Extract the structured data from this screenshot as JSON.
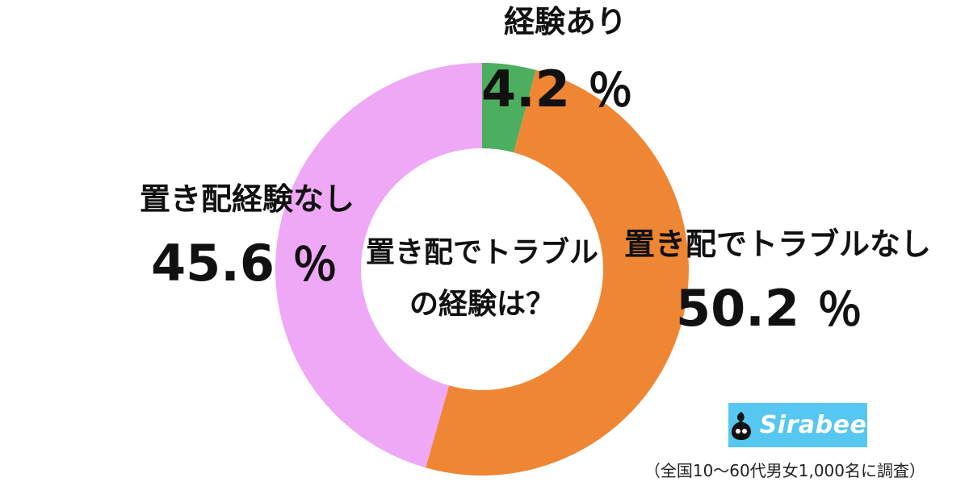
{
  "chart_data": {
    "type": "pie",
    "variant": "donut",
    "center_label": [
      "置き配でトラブル",
      "の経験は？"
    ],
    "categories": [
      "経験あり",
      "置き配でトラブルなし",
      "置き配経験なし"
    ],
    "values": [
      4.2,
      50.2,
      45.6
    ],
    "unit": "％",
    "value_labels": [
      "4.2",
      "50.2",
      "45.6"
    ],
    "colors": [
      "#4caf5f",
      "#ef8634",
      "#eea8f5"
    ]
  },
  "logo": {
    "text": "Sirabee"
  },
  "footnote": "（全国10～60代男女1,000名に調査）"
}
